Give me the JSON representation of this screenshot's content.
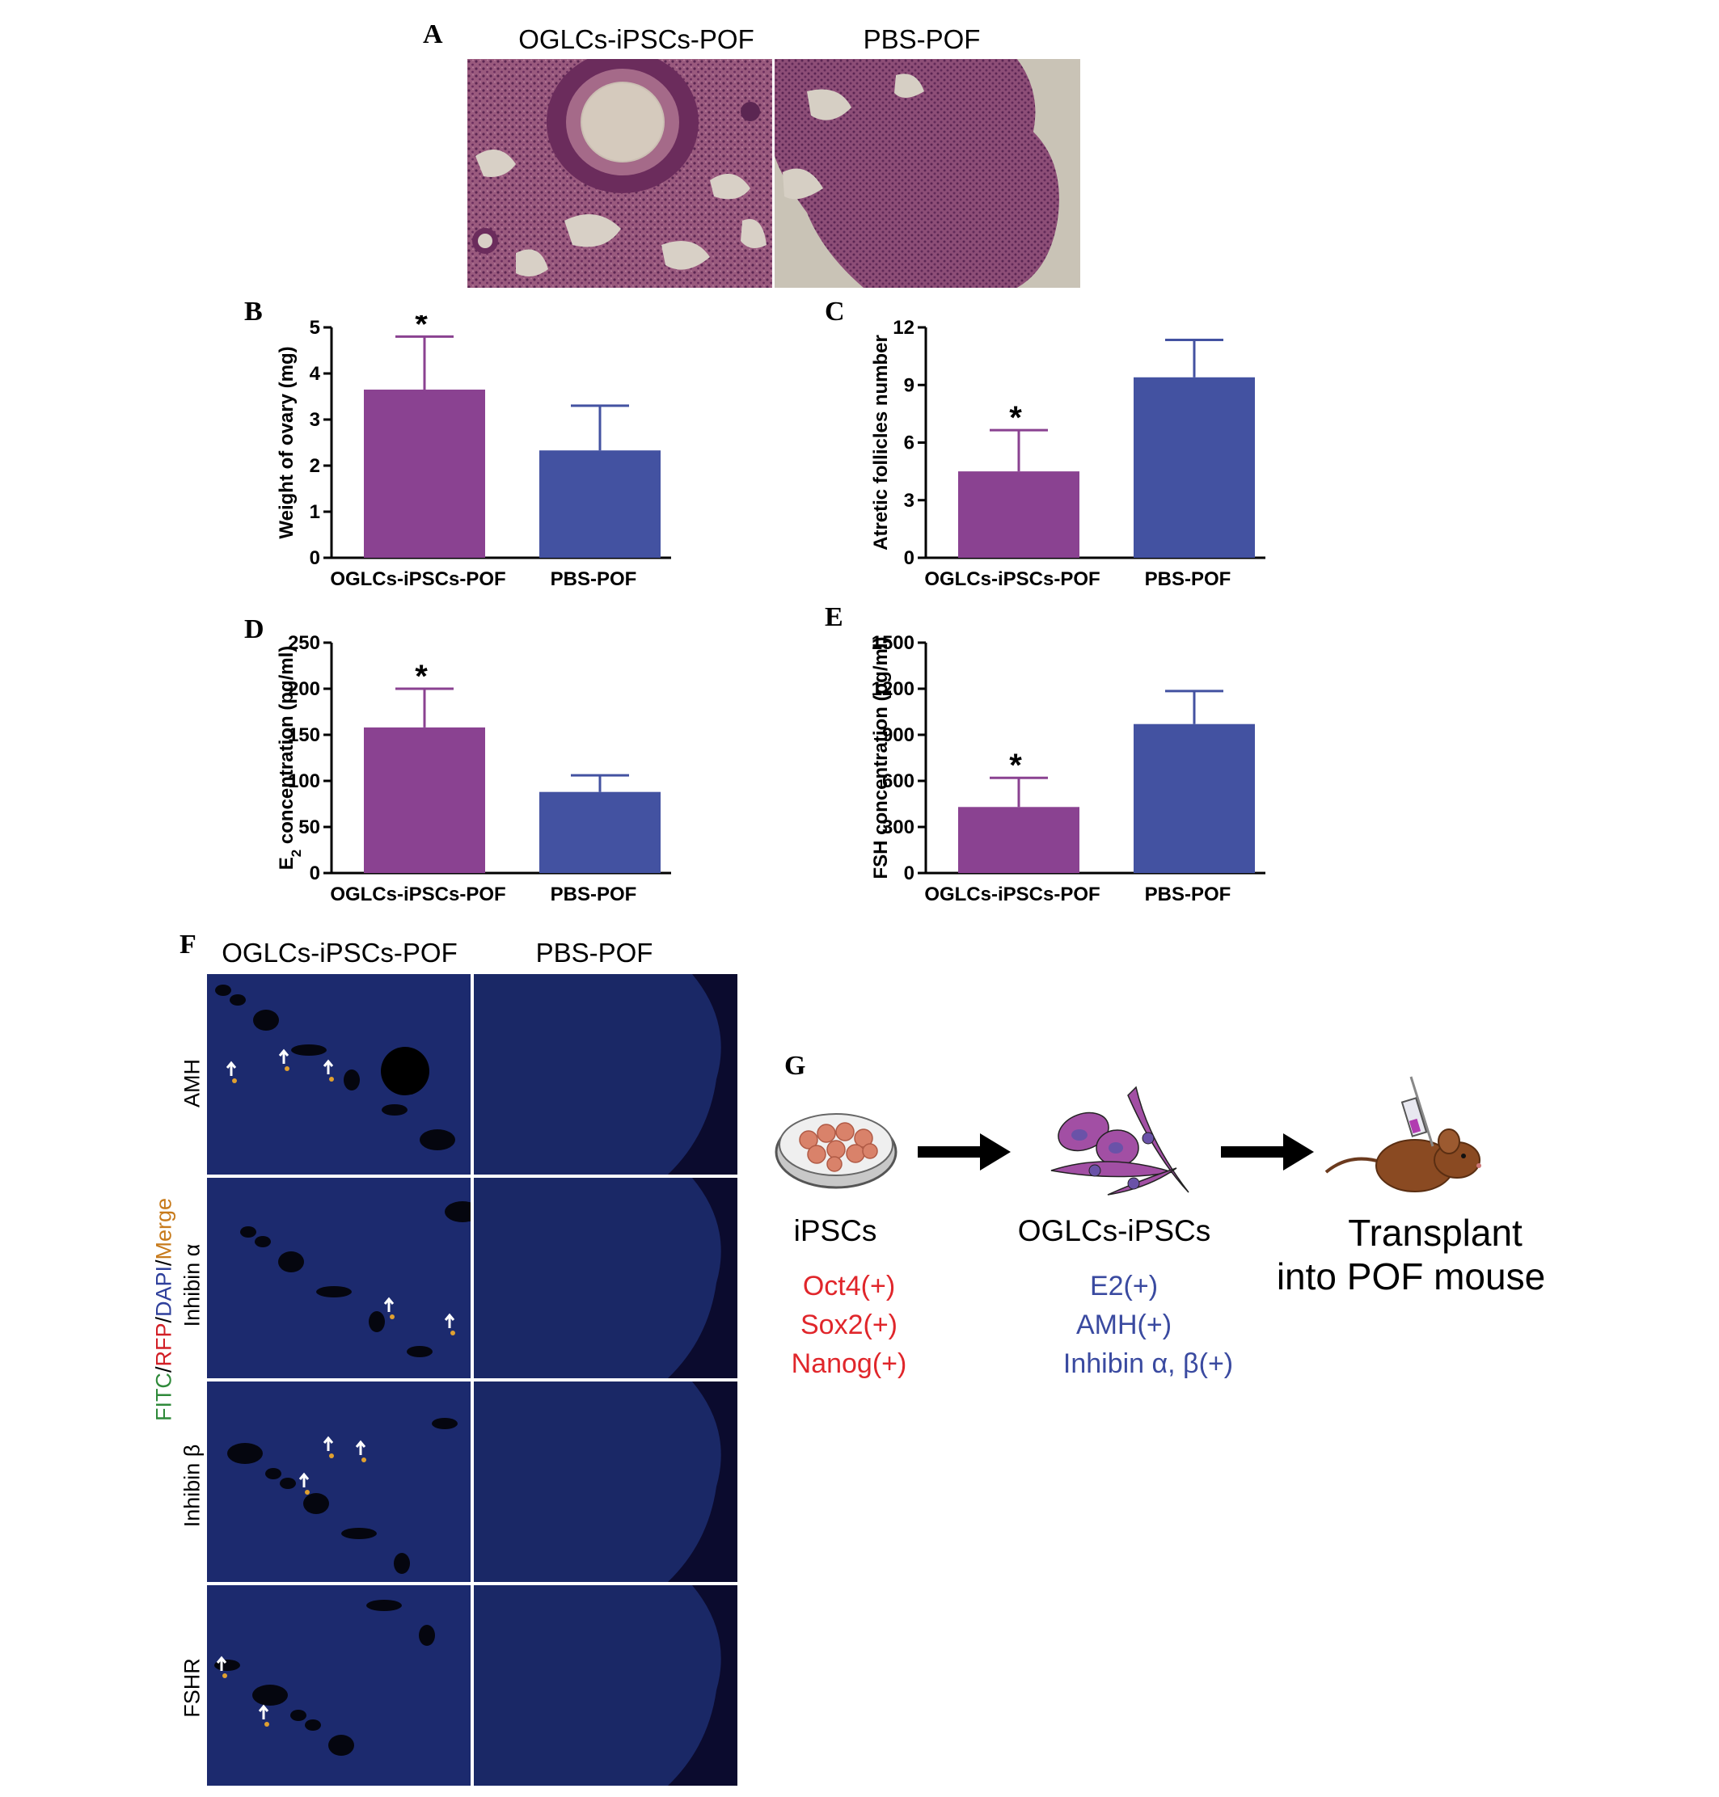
{
  "panelA": {
    "letter": "A",
    "left_title": "OGLCs-iPSCs-POF",
    "right_title": "PBS-POF"
  },
  "charts": {
    "B": {
      "letter": "B",
      "ylabel": "Weight of ovary (mg)",
      "ticks": [
        "0",
        "1",
        "2",
        "3",
        "4",
        "5"
      ]
    },
    "C": {
      "letter": "C",
      "ylabel": "Atretic follicles number",
      "ticks": [
        "0",
        "3",
        "6",
        "9",
        "12"
      ]
    },
    "D": {
      "letter": "D",
      "ylabel_main": "E",
      "ylabel_sub": "2",
      "ylabel_rest": " concentration (pg/ml)",
      "ticks": [
        "0",
        "50",
        "100",
        "150",
        "200",
        "250"
      ]
    },
    "E": {
      "letter": "E",
      "ylabel": "FSH concentration (pg/ml)",
      "ticks": [
        "0",
        "300",
        "600",
        "900",
        "1200",
        "1500"
      ]
    }
  },
  "chart_data": [
    {
      "panel": "B",
      "type": "bar",
      "categories": [
        "OGLCs-iPSCs-POF",
        "PBS-POF"
      ],
      "values": [
        3.65,
        2.33
      ],
      "errors": [
        1.15,
        0.97
      ],
      "significance": [
        "*",
        ""
      ],
      "ylabel": "Weight of ovary (mg)",
      "ylim": [
        0,
        5
      ],
      "colors": [
        "#8a4291",
        "#4352a1"
      ]
    },
    {
      "panel": "C",
      "type": "bar",
      "categories": [
        "OGLCs-iPSCs-POF",
        "PBS-POF"
      ],
      "values": [
        4.5,
        9.4
      ],
      "errors": [
        2.15,
        1.95
      ],
      "significance": [
        "*",
        ""
      ],
      "ylabel": "Atretic follicles number",
      "ylim": [
        0,
        12
      ],
      "colors": [
        "#8a4291",
        "#4352a1"
      ]
    },
    {
      "panel": "D",
      "type": "bar",
      "categories": [
        "OGLCs-iPSCs-POF",
        "PBS-POF"
      ],
      "values": [
        158,
        88
      ],
      "errors": [
        42,
        18
      ],
      "significance": [
        "*",
        ""
      ],
      "ylabel": "E2 concentration (pg/ml)",
      "ylim": [
        0,
        250
      ],
      "colors": [
        "#8a4291",
        "#4352a1"
      ]
    },
    {
      "panel": "E",
      "type": "bar",
      "categories": [
        "OGLCs-iPSCs-POF",
        "PBS-POF"
      ],
      "values": [
        430,
        970
      ],
      "errors": [
        190,
        215
      ],
      "significance": [
        "*",
        ""
      ],
      "ylabel": "FSH concentration (pg/ml)",
      "ylim": [
        0,
        1500
      ],
      "colors": [
        "#8a4291",
        "#4352a1"
      ]
    }
  ],
  "panelF": {
    "letter": "F",
    "left_title": "OGLCs-iPSCs-POF",
    "right_title": "PBS-POF",
    "rows": [
      "AMH",
      "Inhibin α",
      "Inhibin β",
      "FSHR"
    ],
    "legend": {
      "fitc": "FITC",
      "rfp": "RFP",
      "dapi": "DAPI",
      "merge": "Merge",
      "sep": "/",
      "colors": {
        "fitc": "#2f8a3a",
        "rfp": "#d21f26",
        "dapi": "#2e3f9b",
        "merge": "#c77a1b"
      }
    },
    "arrow_icon": "arrow-icon"
  },
  "panelG": {
    "letter": "G",
    "step1": {
      "title": "iPSCs",
      "markers": [
        "Oct4(+)",
        "Sox2(+)",
        "Nanog(+)"
      ],
      "marker_color": "#e0262b",
      "icon": "petri-dish-icon"
    },
    "step2": {
      "title": "OGLCs-iPSCs",
      "markers": [
        "E2(+)",
        "AMH(+)",
        "Inhibin α, β(+)"
      ],
      "marker_color": "#3a4aa0",
      "icon": "cells-icon"
    },
    "step3": {
      "title_line1": "Transplant",
      "title_line2": "into POF mouse",
      "icon": "mouse-injection-icon"
    },
    "connector_icon": "right-arrow-icon"
  }
}
